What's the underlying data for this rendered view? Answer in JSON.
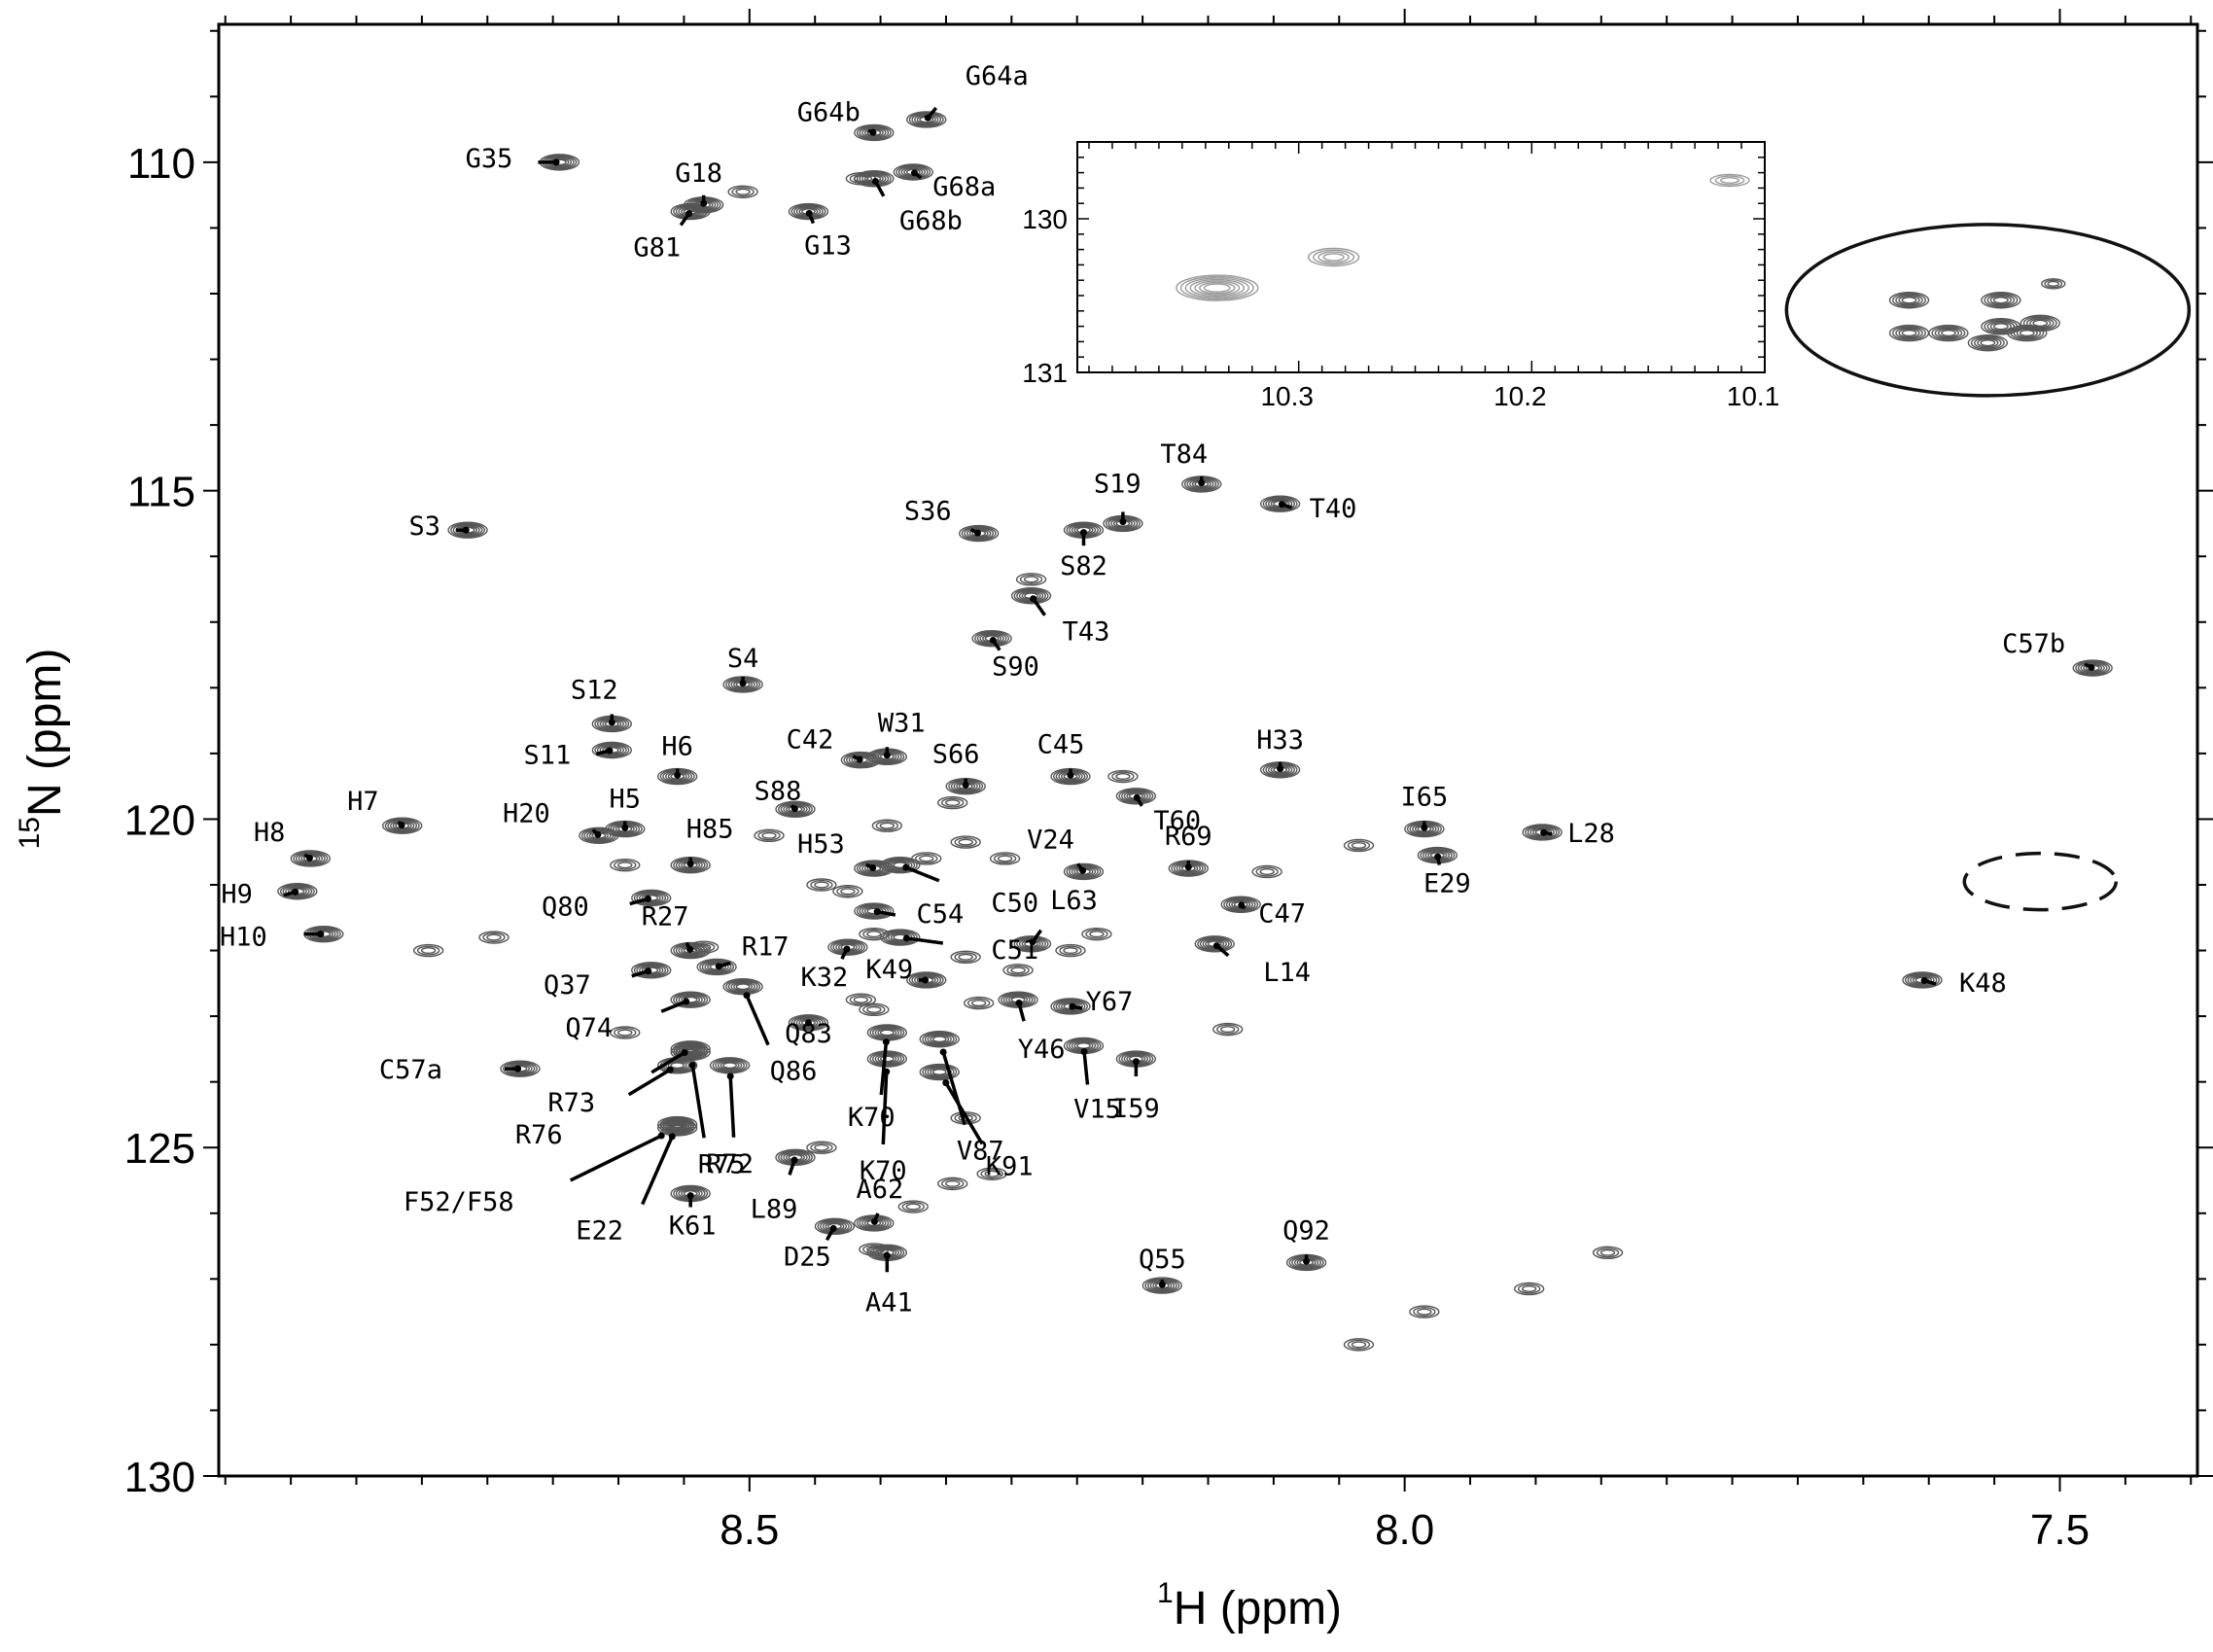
{
  "chart_data": {
    "type": "scatter",
    "subtype": "2D NMR HSQC contour spectrum",
    "xlabel": {
      "sup": "1",
      "text": "H  (ppm)"
    },
    "ylabel": {
      "sup": "15",
      "text": "N  (ppm)"
    },
    "x_axis": {
      "reversed": true,
      "xlim": [
        8.905,
        7.395
      ],
      "ticks": [
        8.5,
        8.0,
        7.5
      ],
      "tick_labels": [
        "8.5",
        "8.0",
        "7.5"
      ]
    },
    "y_axis": {
      "reversed": true,
      "ylim": [
        107.9,
        130.0
      ],
      "ticks": [
        110,
        115,
        120,
        125,
        130
      ],
      "tick_labels": [
        "110",
        "115",
        "120",
        "125",
        "130"
      ]
    },
    "grid": false,
    "peaks": [
      {
        "h": 8.645,
        "n": 110.0,
        "label": "G35"
      },
      {
        "h": 8.535,
        "n": 110.65,
        "label": "G18"
      },
      {
        "h": 8.545,
        "n": 110.75,
        "label": "G81"
      },
      {
        "h": 8.455,
        "n": 110.75,
        "label": "G13"
      },
      {
        "h": 8.405,
        "n": 109.55,
        "label": "G64b"
      },
      {
        "h": 8.365,
        "n": 109.35,
        "label": "G64a"
      },
      {
        "h": 8.375,
        "n": 110.15,
        "label": "G68a"
      },
      {
        "h": 8.405,
        "n": 110.25,
        "label": "G68b"
      },
      {
        "h": 8.715,
        "n": 115.6,
        "label": "S3"
      },
      {
        "h": 8.325,
        "n": 115.65,
        "label": "S36"
      },
      {
        "h": 8.215,
        "n": 115.5,
        "label": "S19"
      },
      {
        "h": 8.245,
        "n": 115.6,
        "label": "S82"
      },
      {
        "h": 8.155,
        "n": 114.9,
        "label": "T84"
      },
      {
        "h": 8.095,
        "n": 115.2,
        "label": "T40"
      },
      {
        "h": 8.285,
        "n": 116.6,
        "label": "T43"
      },
      {
        "h": 8.315,
        "n": 117.25,
        "label": "S90"
      },
      {
        "h": 8.505,
        "n": 117.95,
        "label": "S4"
      },
      {
        "h": 8.605,
        "n": 118.55,
        "label": "S12"
      },
      {
        "h": 8.605,
        "n": 118.95,
        "label": "S11"
      },
      {
        "h": 8.555,
        "n": 119.35,
        "label": "H6"
      },
      {
        "h": 8.395,
        "n": 119.05,
        "label": "W31"
      },
      {
        "h": 8.415,
        "n": 119.1,
        "label": "C42"
      },
      {
        "h": 8.335,
        "n": 119.5,
        "label": "S66"
      },
      {
        "h": 8.255,
        "n": 119.35,
        "label": "C45"
      },
      {
        "h": 8.095,
        "n": 119.25,
        "label": "H33"
      },
      {
        "h": 8.465,
        "n": 119.85,
        "label": "S88"
      },
      {
        "h": 8.205,
        "n": 119.65,
        "label": "T60"
      },
      {
        "h": 8.765,
        "n": 120.1,
        "label": "H7"
      },
      {
        "h": 8.595,
        "n": 120.15,
        "label": "H5"
      },
      {
        "h": 8.615,
        "n": 120.25,
        "label": "H20"
      },
      {
        "h": 8.835,
        "n": 120.6,
        "label": "H8"
      },
      {
        "h": 8.545,
        "n": 120.7,
        "label": "H85"
      },
      {
        "h": 8.845,
        "n": 121.1,
        "label": "H9"
      },
      {
        "h": 8.825,
        "n": 121.75,
        "label": "H10"
      },
      {
        "h": 7.985,
        "n": 120.15,
        "label": "I65"
      },
      {
        "h": 7.895,
        "n": 120.2,
        "label": "L28"
      },
      {
        "h": 7.975,
        "n": 120.55,
        "label": "E29"
      },
      {
        "h": 8.245,
        "n": 120.8,
        "label": "V24"
      },
      {
        "h": 8.165,
        "n": 120.75,
        "label": "R69"
      },
      {
        "h": 8.405,
        "n": 120.75,
        "label": "H53"
      },
      {
        "h": 8.575,
        "n": 121.2,
        "label": "Q80"
      },
      {
        "h": 8.385,
        "n": 120.7,
        "label": "C50"
      },
      {
        "h": 8.405,
        "n": 121.4,
        "label": "C54"
      },
      {
        "h": 8.125,
        "n": 121.3,
        "label": "C47"
      },
      {
        "h": 8.385,
        "n": 121.8,
        "label": "C51"
      },
      {
        "h": 8.285,
        "n": 121.9,
        "label": "L63"
      },
      {
        "h": 8.545,
        "n": 122.0,
        "label": "R27"
      },
      {
        "h": 8.525,
        "n": 122.25,
        "label": "R17"
      },
      {
        "h": 8.575,
        "n": 122.3,
        "label": "Q37"
      },
      {
        "h": 8.425,
        "n": 121.95,
        "label": "K32"
      },
      {
        "h": 8.145,
        "n": 121.9,
        "label": "L14"
      },
      {
        "h": 8.365,
        "n": 122.45,
        "label": "K49"
      },
      {
        "h": 8.545,
        "n": 122.75,
        "label": "Q74"
      },
      {
        "h": 8.295,
        "n": 122.75,
        "label": "Y46"
      },
      {
        "h": 8.255,
        "n": 122.85,
        "label": "Y67"
      },
      {
        "h": 8.505,
        "n": 122.55,
        "label": "Q86"
      },
      {
        "h": 8.455,
        "n": 123.1,
        "label": "Q83"
      },
      {
        "h": 8.245,
        "n": 123.45,
        "label": "V15"
      },
      {
        "h": 8.205,
        "n": 123.65,
        "label": "I59"
      },
      {
        "h": 8.675,
        "n": 123.8,
        "label": "C57a"
      },
      {
        "h": 8.545,
        "n": 123.5,
        "label": "R73"
      },
      {
        "h": 8.555,
        "n": 123.75,
        "label": "R76"
      },
      {
        "h": 8.515,
        "n": 123.75,
        "label": "R72"
      },
      {
        "h": 8.545,
        "n": 123.55,
        "label": "R75"
      },
      {
        "h": 8.395,
        "n": 123.25,
        "label": "K70"
      },
      {
        "h": 8.395,
        "n": 123.65,
        "label": "K70"
      },
      {
        "h": 8.355,
        "n": 123.35,
        "label": "V87"
      },
      {
        "h": 8.355,
        "n": 123.85,
        "label": "K91"
      },
      {
        "h": 8.555,
        "n": 124.7,
        "label": "F52/F58"
      },
      {
        "h": 8.555,
        "n": 124.65,
        "label": "E22"
      },
      {
        "h": 8.545,
        "n": 125.7,
        "label": "K61"
      },
      {
        "h": 8.465,
        "n": 125.15,
        "label": "L89"
      },
      {
        "h": 8.405,
        "n": 126.15,
        "label": "A62"
      },
      {
        "h": 8.435,
        "n": 126.2,
        "label": "D25"
      },
      {
        "h": 8.395,
        "n": 126.6,
        "label": "A41"
      },
      {
        "h": 8.185,
        "n": 127.1,
        "label": "Q55"
      },
      {
        "h": 8.075,
        "n": 126.75,
        "label": "Q92"
      },
      {
        "h": 7.605,
        "n": 122.45,
        "label": "K48"
      },
      {
        "h": 7.475,
        "n": 117.7,
        "label": "C57b"
      }
    ],
    "unlabeled_peaks": [
      {
        "h": 8.505,
        "n": 110.45
      },
      {
        "h": 8.415,
        "n": 110.25
      },
      {
        "h": 8.285,
        "n": 116.35
      },
      {
        "h": 8.395,
        "n": 120.1
      },
      {
        "h": 8.345,
        "n": 119.75
      },
      {
        "h": 8.485,
        "n": 120.25
      },
      {
        "h": 8.445,
        "n": 121.0
      },
      {
        "h": 8.425,
        "n": 121.1
      },
      {
        "h": 8.365,
        "n": 120.6
      },
      {
        "h": 8.335,
        "n": 120.35
      },
      {
        "h": 8.305,
        "n": 120.6
      },
      {
        "h": 8.215,
        "n": 119.35
      },
      {
        "h": 8.105,
        "n": 120.8
      },
      {
        "h": 8.035,
        "n": 120.4
      },
      {
        "h": 8.595,
        "n": 120.7
      },
      {
        "h": 8.695,
        "n": 121.8
      },
      {
        "h": 8.745,
        "n": 122.0
      },
      {
        "h": 8.535,
        "n": 121.95
      },
      {
        "h": 8.405,
        "n": 121.75
      },
      {
        "h": 8.335,
        "n": 122.1
      },
      {
        "h": 8.295,
        "n": 122.3
      },
      {
        "h": 8.255,
        "n": 122.0
      },
      {
        "h": 8.235,
        "n": 121.75
      },
      {
        "h": 8.415,
        "n": 122.75
      },
      {
        "h": 8.405,
        "n": 122.9
      },
      {
        "h": 8.325,
        "n": 122.8
      },
      {
        "h": 8.595,
        "n": 123.25
      },
      {
        "h": 8.135,
        "n": 123.2
      },
      {
        "h": 8.335,
        "n": 124.55
      },
      {
        "h": 8.445,
        "n": 125.0
      },
      {
        "h": 8.345,
        "n": 125.55
      },
      {
        "h": 8.315,
        "n": 125.4
      },
      {
        "h": 8.375,
        "n": 125.9
      },
      {
        "h": 8.405,
        "n": 126.55
      },
      {
        "h": 7.985,
        "n": 127.5
      },
      {
        "h": 7.905,
        "n": 127.15
      },
      {
        "h": 7.845,
        "n": 126.6
      },
      {
        "h": 8.035,
        "n": 128.0
      }
    ],
    "annotations": [
      {
        "shape": "ellipse",
        "line": "solid",
        "h": 7.555,
        "n": 112.25
      },
      {
        "shape": "ellipse",
        "line": "dashed",
        "h": 7.515,
        "n": 120.95
      }
    ],
    "inset": {
      "x_ticks": [
        10.3,
        10.2,
        10.1
      ],
      "x_tick_labels": [
        "10.3",
        "10.2",
        "10.1"
      ],
      "y_ticks": [
        130,
        131
      ],
      "y_tick_labels": [
        "130",
        "131"
      ],
      "peaks": [
        {
          "h": 10.33,
          "n": 130.45
        },
        {
          "h": 10.28,
          "n": 130.25
        },
        {
          "h": 10.11,
          "n": 129.75
        }
      ]
    }
  },
  "colors": {
    "axis": "#000000",
    "contour": "#555555",
    "contour_light": "#9a9a9a"
  }
}
